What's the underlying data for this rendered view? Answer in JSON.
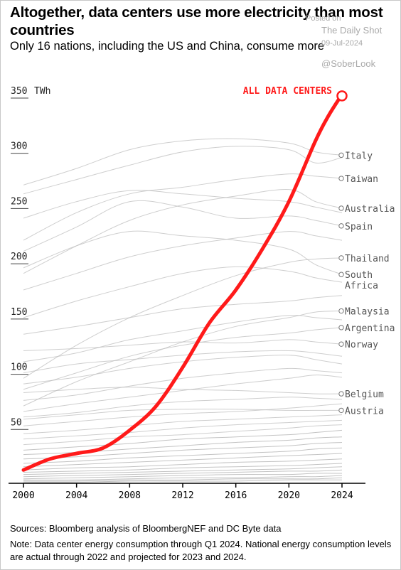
{
  "header": {
    "title": "Altogether, data centers use more electricity than most countries",
    "subtitle": "Only 16 nations, including the US and China, consume more"
  },
  "watermark": {
    "posted_on": "Posted on",
    "source": "The Daily Shot",
    "date": "09-Jul-2024",
    "handle": "@SoberLook"
  },
  "footer": {
    "sources": "Sources: Bloomberg analysis of BloombergNEF and DC Byte data",
    "note": "Note: Data center energy consumption through Q1 2024. National energy consumption levels are actual through 2022 and projected for 2023 and 2024."
  },
  "colors": {
    "highlight": "#ff1a1a",
    "country_line": "#bdbdbd",
    "label": "#555555",
    "axis": "#000000"
  },
  "chart_data": {
    "type": "line",
    "title": "Altogether, data centers use more electricity than most countries",
    "subtitle": "Only 16 nations, including the US and China, consume more",
    "ylabel_unit": "TWh",
    "xlim": [
      2000,
      2024
    ],
    "ylim": [
      0,
      350
    ],
    "x_ticks": [
      "2000",
      "2004",
      "2008",
      "2012",
      "2016",
      "2020",
      "2024"
    ],
    "y_ticks": [
      "50",
      "100",
      "150",
      "200",
      "250",
      "300",
      "350"
    ],
    "y_ticks_values": [
      50,
      100,
      150,
      200,
      250,
      300,
      350
    ],
    "highlight": {
      "name": "ALL DATA CENTERS",
      "x": [
        2000,
        2002,
        2004,
        2006,
        2008,
        2010,
        2012,
        2014,
        2016,
        2018,
        2020,
        2022,
        2023,
        2024
      ],
      "y": [
        12,
        22,
        27,
        32,
        48,
        70,
        105,
        145,
        175,
        212,
        255,
        310,
        333,
        352
      ]
    },
    "labeled_countries": [
      {
        "name": "Italy",
        "value_2024": 297
      },
      {
        "name": "Taiwan",
        "value_2024": 276
      },
      {
        "name": "Australia",
        "value_2024": 249
      },
      {
        "name": "Spain",
        "value_2024": 233
      },
      {
        "name": "Thailand",
        "value_2024": 204
      },
      {
        "name": "South",
        "name2": "Africa",
        "value_2024": 189
      },
      {
        "name": "Malaysia",
        "value_2024": 156
      },
      {
        "name": "Argentina",
        "value_2024": 141
      },
      {
        "name": "Norway",
        "value_2024": 126
      },
      {
        "name": "Belgium",
        "value_2024": 81
      },
      {
        "name": "Austria",
        "value_2024": 66
      }
    ],
    "background_series": [
      {
        "x": [
          2000,
          2004,
          2008,
          2012,
          2016,
          2020,
          2022,
          2024
        ],
        "y": [
          270,
          285,
          302,
          310,
          312,
          308,
          300,
          297
        ]
      },
      {
        "x": [
          2000,
          2004,
          2008,
          2012,
          2016,
          2020,
          2022,
          2024
        ],
        "y": [
          262,
          275,
          288,
          300,
          305,
          302,
          290,
          295
        ]
      },
      {
        "x": [
          2000,
          2004,
          2008,
          2012,
          2016,
          2020,
          2022,
          2024
        ],
        "y": [
          220,
          245,
          262,
          268,
          275,
          280,
          278,
          276
        ]
      },
      {
        "x": [
          2000,
          2004,
          2008,
          2012,
          2016,
          2020,
          2022,
          2024
        ],
        "y": [
          190,
          215,
          238,
          252,
          260,
          266,
          255,
          249
        ]
      },
      {
        "x": [
          2000,
          2004,
          2008,
          2012,
          2016,
          2020,
          2022,
          2024
        ],
        "y": [
          210,
          232,
          255,
          250,
          240,
          242,
          238,
          233
        ]
      },
      {
        "x": [
          2000,
          2004,
          2008,
          2012,
          2016,
          2020,
          2022,
          2024
        ],
        "y": [
          95,
          125,
          150,
          170,
          188,
          200,
          203,
          204
        ]
      },
      {
        "x": [
          2000,
          2004,
          2008,
          2012,
          2016,
          2020,
          2022,
          2024
        ],
        "y": [
          195,
          215,
          228,
          224,
          220,
          212,
          198,
          189
        ]
      },
      {
        "x": [
          2000,
          2004,
          2008,
          2012,
          2016,
          2020,
          2022,
          2024
        ],
        "y": [
          70,
          92,
          110,
          128,
          142,
          150,
          155,
          156
        ]
      },
      {
        "x": [
          2000,
          2004,
          2008,
          2012,
          2016,
          2020,
          2022,
          2024
        ],
        "y": [
          85,
          100,
          115,
          125,
          132,
          136,
          139,
          141
        ]
      },
      {
        "x": [
          2000,
          2004,
          2008,
          2012,
          2016,
          2020,
          2022,
          2024
        ],
        "y": [
          120,
          122,
          125,
          128,
          127,
          130,
          128,
          126
        ]
      },
      {
        "x": [
          2000,
          2004,
          2008,
          2012,
          2016,
          2020,
          2022,
          2024
        ],
        "y": [
          82,
          85,
          87,
          85,
          84,
          82,
          81,
          81
        ]
      },
      {
        "x": [
          2000,
          2004,
          2008,
          2012,
          2016,
          2020,
          2022,
          2024
        ],
        "y": [
          58,
          62,
          66,
          67,
          67,
          66,
          66,
          66
        ]
      },
      {
        "x": [
          2000,
          2004,
          2008,
          2012,
          2016,
          2020,
          2022,
          2024
        ],
        "y": [
          240,
          255,
          265,
          262,
          258,
          255,
          250,
          245
        ]
      },
      {
        "x": [
          2000,
          2004,
          2008,
          2012,
          2016,
          2020,
          2022,
          2024
        ],
        "y": [
          175,
          190,
          205,
          215,
          222,
          228,
          224,
          220
        ]
      },
      {
        "x": [
          2000,
          2004,
          2008,
          2012,
          2016,
          2020,
          2022,
          2024
        ],
        "y": [
          150,
          165,
          178,
          190,
          196,
          192,
          186,
          182
        ]
      },
      {
        "x": [
          2000,
          2004,
          2008,
          2012,
          2016,
          2020,
          2022,
          2024
        ],
        "y": [
          135,
          142,
          150,
          158,
          162,
          165,
          168,
          170
        ]
      },
      {
        "x": [
          2000,
          2004,
          2008,
          2012,
          2016,
          2020,
          2022,
          2024
        ],
        "y": [
          110,
          118,
          130,
          138,
          146,
          152,
          150,
          148
        ]
      },
      {
        "x": [
          2000,
          2004,
          2008,
          2012,
          2016,
          2020,
          2022,
          2024
        ],
        "y": [
          100,
          108,
          112,
          116,
          119,
          120,
          118,
          115
        ]
      },
      {
        "x": [
          2000,
          2004,
          2008,
          2012,
          2016,
          2020,
          2022,
          2024
        ],
        "y": [
          90,
          96,
          104,
          110,
          114,
          116,
          112,
          108
        ]
      },
      {
        "x": [
          2000,
          2004,
          2008,
          2012,
          2016,
          2020,
          2022,
          2024
        ],
        "y": [
          75,
          80,
          88,
          95,
          100,
          104,
          102,
          100
        ]
      },
      {
        "x": [
          2000,
          2004,
          2008,
          2012,
          2016,
          2020,
          2022,
          2024
        ],
        "y": [
          65,
          72,
          78,
          84,
          90,
          95,
          98,
          96
        ]
      },
      {
        "x": [
          2000,
          2004,
          2008,
          2012,
          2016,
          2020,
          2022,
          2024
        ],
        "y": [
          60,
          64,
          70,
          74,
          76,
          78,
          77,
          76
        ]
      },
      {
        "x": [
          2000,
          2004,
          2008,
          2012,
          2016,
          2020,
          2022,
          2024
        ],
        "y": [
          52,
          56,
          60,
          63,
          65,
          68,
          70,
          72
        ]
      },
      {
        "x": [
          2000,
          2004,
          2008,
          2012,
          2016,
          2020,
          2022,
          2024
        ],
        "y": [
          45,
          48,
          52,
          56,
          58,
          60,
          61,
          62
        ]
      },
      {
        "x": [
          2000,
          2004,
          2008,
          2012,
          2016,
          2020,
          2022,
          2024
        ],
        "y": [
          40,
          43,
          46,
          50,
          53,
          55,
          56,
          57
        ]
      },
      {
        "x": [
          2000,
          2004,
          2008,
          2012,
          2016,
          2020,
          2022,
          2024
        ],
        "y": [
          35,
          38,
          42,
          44,
          47,
          50,
          52,
          53
        ]
      },
      {
        "x": [
          2000,
          2004,
          2008,
          2012,
          2016,
          2020,
          2022,
          2024
        ],
        "y": [
          30,
          33,
          36,
          40,
          42,
          44,
          46,
          48
        ]
      },
      {
        "x": [
          2000,
          2004,
          2008,
          2012,
          2016,
          2020,
          2022,
          2024
        ],
        "y": [
          26,
          28,
          31,
          34,
          37,
          39,
          41,
          42
        ]
      },
      {
        "x": [
          2000,
          2004,
          2008,
          2012,
          2016,
          2020,
          2022,
          2024
        ],
        "y": [
          22,
          24,
          27,
          30,
          32,
          34,
          36,
          37
        ]
      },
      {
        "x": [
          2000,
          2004,
          2008,
          2012,
          2016,
          2020,
          2022,
          2024
        ],
        "y": [
          18,
          20,
          23,
          25,
          27,
          29,
          31,
          32
        ]
      },
      {
        "x": [
          2000,
          2004,
          2008,
          2012,
          2016,
          2020,
          2022,
          2024
        ],
        "y": [
          15,
          17,
          19,
          21,
          23,
          25,
          26,
          27
        ]
      },
      {
        "x": [
          2000,
          2004,
          2008,
          2012,
          2016,
          2020,
          2022,
          2024
        ],
        "y": [
          12,
          14,
          15,
          17,
          19,
          20,
          21,
          22
        ]
      },
      {
        "x": [
          2000,
          2004,
          2008,
          2012,
          2016,
          2020,
          2022,
          2024
        ],
        "y": [
          10,
          11,
          12,
          14,
          15,
          16,
          17,
          18
        ]
      },
      {
        "x": [
          2000,
          2004,
          2008,
          2012,
          2016,
          2020,
          2022,
          2024
        ],
        "y": [
          8,
          9,
          10,
          11,
          12,
          13,
          14,
          15
        ]
      },
      {
        "x": [
          2000,
          2004,
          2008,
          2012,
          2016,
          2020,
          2022,
          2024
        ],
        "y": [
          6,
          7,
          8,
          9,
          10,
          11,
          11,
          12
        ]
      },
      {
        "x": [
          2000,
          2004,
          2008,
          2012,
          2016,
          2020,
          2022,
          2024
        ],
        "y": [
          4,
          5,
          6,
          7,
          8,
          8,
          9,
          9
        ]
      },
      {
        "x": [
          2000,
          2004,
          2008,
          2012,
          2016,
          2020,
          2022,
          2024
        ],
        "y": [
          3,
          3,
          4,
          5,
          5,
          6,
          6,
          7
        ]
      },
      {
        "x": [
          2000,
          2004,
          2008,
          2012,
          2016,
          2020,
          2022,
          2024
        ],
        "y": [
          2,
          2,
          3,
          3,
          4,
          4,
          4,
          5
        ]
      },
      {
        "x": [
          2000,
          2004,
          2008,
          2012,
          2016,
          2020,
          2022,
          2024
        ],
        "y": [
          1,
          1,
          2,
          2,
          2,
          3,
          3,
          3
        ]
      }
    ],
    "grid": false,
    "legend": "none"
  }
}
